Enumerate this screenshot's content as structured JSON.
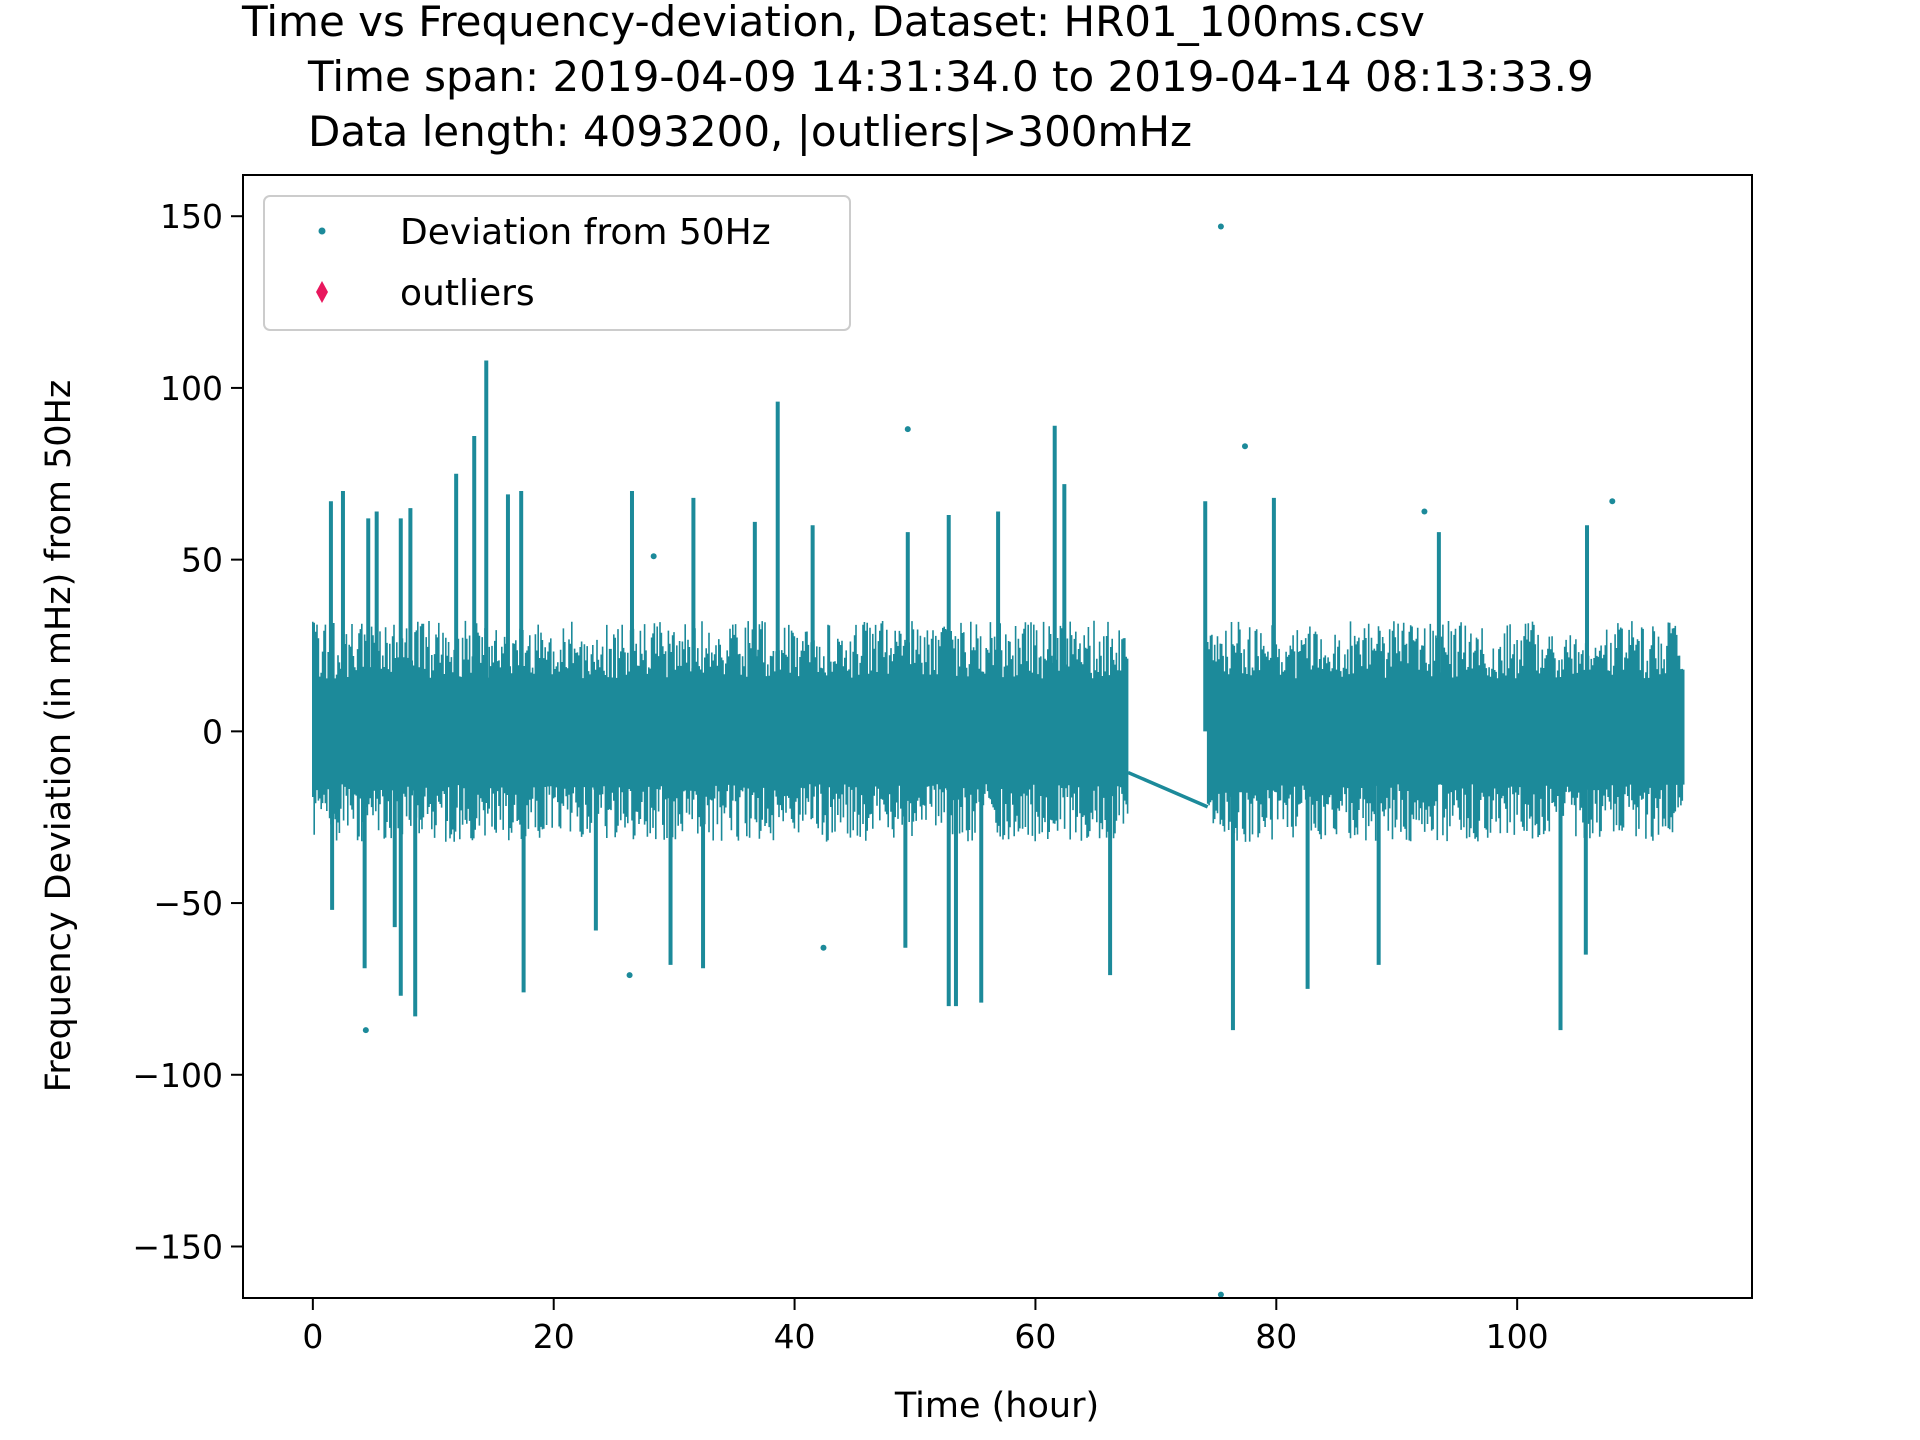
{
  "chart_data": {
    "type": "scatter",
    "title_lines": [
      "Time vs Frequency-deviation, Dataset: HR01_100ms.csv",
      "Time span: 2019-04-09 14:31:34.0 to 2019-04-14 08:13:33.9",
      "Data length: 4093200, |outliers|>300mHz"
    ],
    "xlabel": "Time (hour)",
    "ylabel": "Frequency Deviation (in mHz) from 50Hz",
    "xlim": [
      -5.8,
      119.5
    ],
    "ylim": [
      -165,
      162
    ],
    "xticks": [
      0,
      20,
      40,
      60,
      80,
      100
    ],
    "xtick_labels": [
      "0",
      "20",
      "40",
      "60",
      "80",
      "100"
    ],
    "yticks": [
      150,
      100,
      50,
      0,
      -50,
      -100,
      -150
    ],
    "ytick_labels": [
      "150",
      "100",
      "50",
      "0",
      "−50",
      "−100",
      "−150"
    ],
    "grid": false,
    "legend": {
      "position": "top-left",
      "entries": [
        "Deviation from 50Hz",
        "outliers"
      ]
    },
    "colors": {
      "deviation": "#1c8a9a",
      "outliers": "#e8175d"
    },
    "series": [
      {
        "name": "Deviation from 50Hz",
        "marker": "point",
        "segments": [
          [
            0,
            67.7
          ],
          [
            74.3,
            113.9
          ]
        ],
        "gap_line": {
          "from": [
            67.7,
            -12
          ],
          "to": [
            74.3,
            -22
          ]
        },
        "band": {
          "upper": 28,
          "lower": -28
        },
        "spikes": [
          [
            1.5,
            67
          ],
          [
            2.5,
            70
          ],
          [
            4.6,
            62
          ],
          [
            5.3,
            64
          ],
          [
            7.3,
            62
          ],
          [
            8.1,
            65
          ],
          [
            11.9,
            75
          ],
          [
            13.4,
            86
          ],
          [
            14.4,
            108
          ],
          [
            16.2,
            69
          ],
          [
            17.3,
            70
          ],
          [
            26.5,
            70
          ],
          [
            31.6,
            68
          ],
          [
            36.7,
            61
          ],
          [
            38.6,
            96
          ],
          [
            41.5,
            60
          ],
          [
            49.4,
            58
          ],
          [
            52.8,
            63
          ],
          [
            56.9,
            64
          ],
          [
            61.6,
            89
          ],
          [
            62.4,
            72
          ],
          [
            74.1,
            67
          ],
          [
            79.8,
            68
          ],
          [
            93.5,
            58
          ],
          [
            105.8,
            60
          ],
          [
            1.6,
            -52
          ],
          [
            4.3,
            -69
          ],
          [
            6.8,
            -57
          ],
          [
            7.3,
            -77
          ],
          [
            8.5,
            -83
          ],
          [
            17.5,
            -76
          ],
          [
            23.5,
            -58
          ],
          [
            29.7,
            -68
          ],
          [
            32.4,
            -69
          ],
          [
            49.2,
            -63
          ],
          [
            52.8,
            -80
          ],
          [
            53.4,
            -80
          ],
          [
            55.5,
            -79
          ],
          [
            66.2,
            -71
          ],
          [
            76.4,
            -87
          ],
          [
            82.6,
            -75
          ],
          [
            88.5,
            -68
          ],
          [
            103.6,
            -87
          ],
          [
            105.7,
            -65
          ]
        ],
        "isolated_points": [
          [
            75.4,
            147
          ],
          [
            75.4,
            -164
          ],
          [
            4.4,
            -87
          ],
          [
            49.4,
            88
          ],
          [
            77.4,
            83
          ],
          [
            107.9,
            67
          ],
          [
            28.3,
            51
          ],
          [
            92.3,
            64
          ],
          [
            26.3,
            -71
          ],
          [
            42.4,
            -63
          ]
        ]
      },
      {
        "name": "outliers",
        "marker": "diamond",
        "points": []
      }
    ]
  }
}
